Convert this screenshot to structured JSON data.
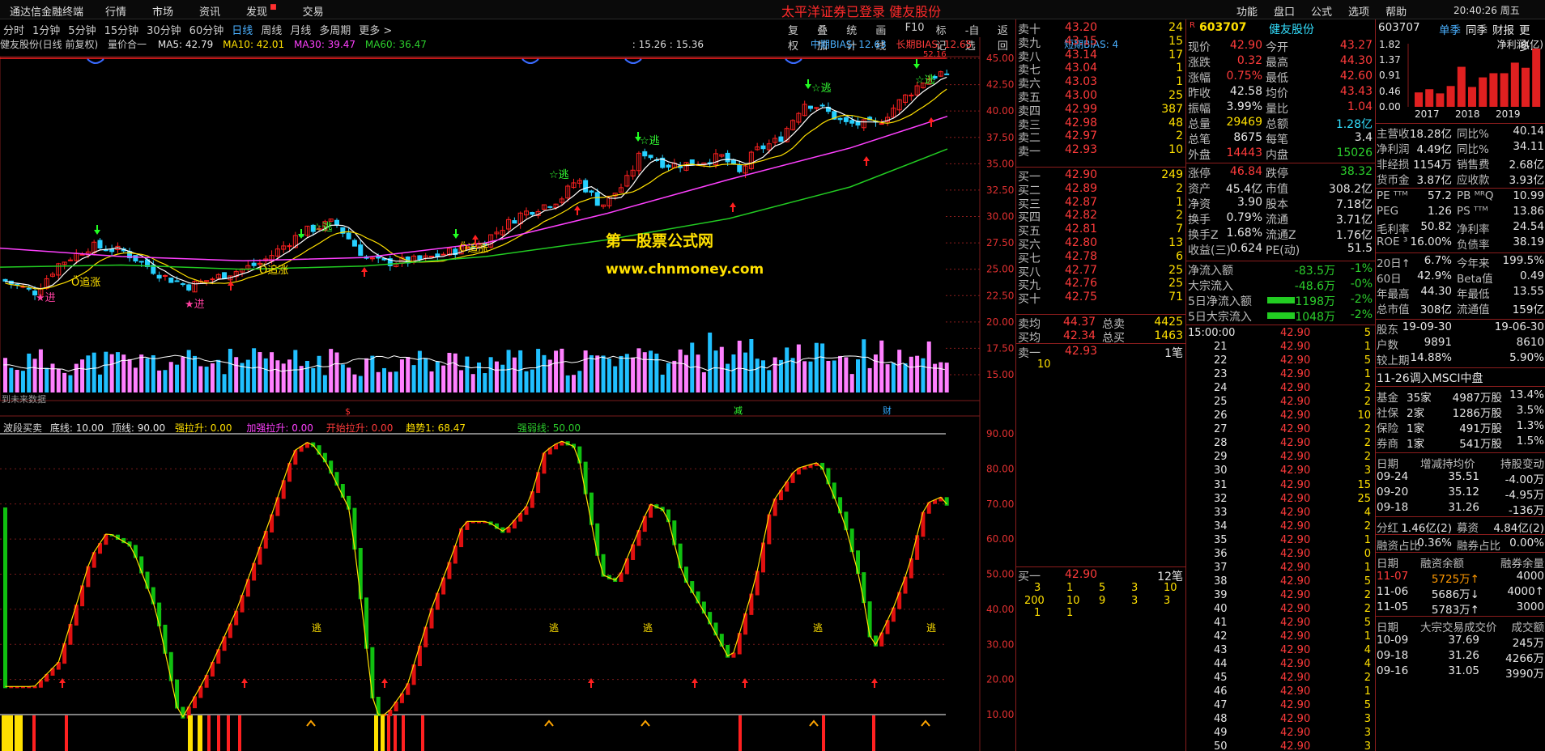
{
  "app": {
    "title": "通达信金融终端",
    "menus": [
      "行情",
      "市场",
      "资讯",
      "发现",
      "交易"
    ],
    "login_notice": "太平洋证券已登录   健友股份",
    "right_menus": [
      "功能",
      "盘口",
      "公式",
      "选项",
      "帮助"
    ],
    "clock": "20:40:26",
    "weekday": "周五"
  },
  "periods": {
    "items": [
      "分时",
      "1分钟",
      "5分钟",
      "15分钟",
      "30分钟",
      "60分钟",
      "日线",
      "周线",
      "月线",
      "多周期",
      "更多 >"
    ],
    "active": "日线"
  },
  "tools": [
    "复权",
    "叠加",
    "统计",
    "画线",
    "F10",
    "标记",
    "-自选",
    "返回"
  ],
  "chart": {
    "main_title": "健友股份(日线 前复权)",
    "indicator_main": "量价合一",
    "ma5": "MA5: 42.79",
    "ma10": "MA10: 42.01",
    "ma30": "MA30: 39.47",
    "ma60": "MA60: 36.47",
    "time_range": ": 15.26 : 15.36",
    "bias_mid": "中期BIAS: 12.63",
    "bias_long": "长期BIAS: 12.65",
    "bias_short": "短期BIAS: 4",
    "colors": {
      "ma5": "#ffffff",
      "ma10": "#ffe000",
      "ma30": "#ff40ff",
      "ma60": "#22cc22",
      "up": "#ff2020",
      "down": "#26d0ff",
      "vol_up": "#ff80ff",
      "vol_down": "#20c0ff"
    },
    "price_ticks": [
      "45.00",
      "42.50",
      "40.00",
      "37.50",
      "35.00",
      "32.50",
      "30.00",
      "27.50",
      "25.00",
      "22.50",
      "20.00",
      "17.50",
      "15.00"
    ],
    "ind_ticks": [
      "90.00",
      "80.00",
      "70.00",
      "60.00",
      "50.00",
      "40.00",
      "30.00",
      "20.00",
      "10.00"
    ],
    "watermark1": "第一股票公式网",
    "watermark2": "www.chnmoney.com",
    "future_label": "到未来数据",
    "signal_escape": "☆逃",
    "signal_enter": "★进",
    "signal_up": "Ö追涨",
    "escape_short": "逃",
    "markers": {
      "s": "$",
      "reduce": "减",
      "fin": "财"
    },
    "max_label": "52.16"
  },
  "indicator": {
    "name": "波段买卖",
    "bottom": "底线: 10.00",
    "top": "顶线: 90.00",
    "strong": "强拉升: 0.00",
    "add": "加强拉升: 0.00",
    "start": "开始拉升: 0.00",
    "trend": "趋势1: 68.47",
    "weak": "强弱线: 50.00"
  },
  "book": {
    "asks": [
      [
        "卖十",
        "43.20",
        "24"
      ],
      [
        "卖九",
        "43.15",
        "15"
      ],
      [
        "卖八",
        "43.14",
        "17"
      ],
      [
        "卖七",
        "43.04",
        "1"
      ],
      [
        "卖六",
        "43.03",
        "1"
      ],
      [
        "卖五",
        "43.00",
        "25"
      ],
      [
        "卖四",
        "42.99",
        "387"
      ],
      [
        "卖三",
        "42.98",
        "48"
      ],
      [
        "卖二",
        "42.97",
        "2"
      ],
      [
        "卖一",
        "42.93",
        "10"
      ]
    ],
    "bids": [
      [
        "买一",
        "42.90",
        "249"
      ],
      [
        "买二",
        "42.89",
        "2"
      ],
      [
        "买三",
        "42.87",
        "1"
      ],
      [
        "买四",
        "42.82",
        "2"
      ],
      [
        "买五",
        "42.81",
        "7"
      ],
      [
        "买六",
        "42.80",
        "13"
      ],
      [
        "买七",
        "42.78",
        "6"
      ],
      [
        "买八",
        "42.77",
        "25"
      ],
      [
        "买九",
        "42.76",
        "25"
      ],
      [
        "买十",
        "42.75",
        "71"
      ]
    ],
    "ask_avg": [
      "卖均",
      "44.37",
      "总卖",
      "4425"
    ],
    "bid_avg": [
      "买均",
      "42.34",
      "总买",
      "1463"
    ],
    "sell1": [
      "卖一",
      "42.93",
      "1笔"
    ],
    "sell1_qty": "10",
    "buy1": [
      "买一",
      "42.90",
      "12笔"
    ],
    "buy1_qtys": [
      [
        "3",
        "1",
        "5",
        "3",
        "10"
      ],
      [
        "200",
        "10",
        "9",
        "3",
        "3"
      ],
      [
        "1",
        "1"
      ]
    ]
  },
  "quote": {
    "code": "603707",
    "name": "健友股份",
    "flag": "R",
    "rows": [
      [
        "现价",
        "42.90",
        "今开",
        "43.27"
      ],
      [
        "涨跌",
        "0.32",
        "最高",
        "44.30"
      ],
      [
        "涨幅",
        "0.75%",
        "最低",
        "42.60"
      ],
      [
        "昨收",
        "42.58",
        "均价",
        "43.43"
      ],
      [
        "振幅",
        "3.99%",
        "量比",
        "1.04"
      ],
      [
        "总量",
        "29469",
        "总额",
        "1.28亿"
      ],
      [
        "总笔",
        "8675",
        "每笔",
        "3.4"
      ],
      [
        "外盘",
        "14443",
        "内盘",
        "15026"
      ]
    ],
    "rows2": [
      [
        "涨停",
        "46.84",
        "跌停",
        "38.32"
      ],
      [
        "资产",
        "45.4亿",
        "市值",
        "308.2亿"
      ],
      [
        "净资",
        "3.90",
        "股本",
        "7.18亿"
      ],
      [
        "换手",
        "0.79%",
        "流通",
        "3.71亿"
      ],
      [
        "换手Z",
        "1.68%",
        "流通Z",
        "1.76亿"
      ],
      [
        "收益(三)",
        "0.624",
        "PE(动)",
        "51.5"
      ]
    ],
    "flows": [
      [
        "净流入额",
        "-83.5万",
        "-1%"
      ],
      [
        "大宗流入",
        "-48.6万",
        "-0%"
      ],
      [
        "5日净流入额",
        "-1198万",
        "-2%"
      ],
      [
        "5日大宗流入",
        "-1048万",
        "-2%"
      ]
    ],
    "tick_header": "15:00:00",
    "ticks": [
      [
        "21",
        "42.90",
        "1"
      ],
      [
        "22",
        "42.90",
        "5"
      ],
      [
        "23",
        "42.90",
        "1"
      ],
      [
        "24",
        "42.90",
        "2"
      ],
      [
        "25",
        "42.90",
        "2"
      ],
      [
        "26",
        "42.90",
        "10"
      ],
      [
        "27",
        "42.90",
        "2"
      ],
      [
        "28",
        "42.90",
        "2"
      ],
      [
        "29",
        "42.90",
        "2"
      ],
      [
        "30",
        "42.90",
        "3"
      ],
      [
        "31",
        "42.90",
        "15"
      ],
      [
        "32",
        "42.90",
        "25"
      ],
      [
        "33",
        "42.90",
        "4"
      ],
      [
        "34",
        "42.90",
        "2"
      ],
      [
        "35",
        "42.90",
        "1"
      ],
      [
        "36",
        "42.90",
        "0"
      ],
      [
        "37",
        "42.90",
        "1"
      ],
      [
        "38",
        "42.90",
        "5"
      ],
      [
        "39",
        "42.90",
        "2"
      ],
      [
        "40",
        "42.90",
        "2"
      ],
      [
        "41",
        "42.90",
        "5"
      ],
      [
        "42",
        "42.90",
        "1"
      ],
      [
        "43",
        "42.90",
        "4"
      ],
      [
        "44",
        "42.90",
        "4"
      ],
      [
        "45",
        "42.90",
        "2"
      ],
      [
        "46",
        "42.90",
        "1"
      ],
      [
        "47",
        "42.90",
        "5"
      ],
      [
        "48",
        "42.90",
        "3"
      ],
      [
        "49",
        "42.90",
        "3"
      ],
      [
        "50",
        "42.90",
        "3"
      ]
    ],
    "first_tick": [
      "",
      "42.90",
      "5"
    ]
  },
  "f10": {
    "code": "603707",
    "tabs": [
      "单季",
      "同季",
      "财报",
      "更多..."
    ],
    "chart_label": "净利润(亿)",
    "y_ticks": [
      "1.82",
      "1.37",
      "0.91",
      "0.46",
      "0.00"
    ],
    "years": [
      "2017",
      "2018",
      "2019"
    ],
    "bars": [
      0.45,
      0.55,
      0.42,
      0.65,
      1.25,
      0.62,
      0.92,
      1.05,
      1.05,
      1.38,
      1.22,
      1.82
    ],
    "fin": [
      [
        "主营收",
        "18.28亿",
        "同比%",
        "40.14"
      ],
      [
        "净利润",
        "4.49亿",
        "同比%",
        "34.11"
      ],
      [
        "非经损",
        "1154万",
        "销售费",
        "2.68亿"
      ],
      [
        "货币金",
        "3.87亿",
        "应收款",
        "3.93亿"
      ]
    ],
    "val": [
      [
        "PE ᵀᵀᴹ",
        "57.2",
        "PB ᴹᴿQ",
        "10.99"
      ],
      [
        "PEG",
        "1.26",
        "PS ᵀᵀᴹ",
        "13.86"
      ],
      [
        "毛利率",
        "50.82",
        "净利率",
        "24.54"
      ],
      [
        "ROE ³",
        "16.00%",
        "负债率",
        "38.19"
      ]
    ],
    "perf": [
      [
        "20日↑",
        "6.7%",
        "今年来",
        "199.5%"
      ],
      [
        "60日",
        "42.9%",
        "Beta值",
        "0.49"
      ],
      [
        "年最高",
        "44.30",
        "年最低",
        "13.55"
      ],
      [
        "总市值",
        "308亿",
        "流通值",
        "159亿"
      ]
    ],
    "holders": [
      [
        "股东",
        "19-09-30",
        "19-06-30"
      ],
      [
        "户数",
        "9891",
        "8610"
      ],
      [
        "较上期",
        "14.88%",
        "5.90%"
      ]
    ],
    "msci": "11-26调入MSCI中盘",
    "inst": [
      [
        "基金",
        "35家",
        "4987万股",
        "13.4%"
      ],
      [
        "社保",
        "2家",
        "1286万股",
        "3.5%"
      ],
      [
        "保险",
        "1家",
        "491万股",
        "1.3%"
      ],
      [
        "券商",
        "1家",
        "541万股",
        "1.5%"
      ]
    ],
    "holdhead": [
      "日期",
      "增减持均价",
      "持股变动"
    ],
    "holdrows": [
      [
        "09-24",
        "35.51",
        "-4.00万"
      ],
      [
        "09-20",
        "35.12",
        "-4.95万"
      ],
      [
        "09-18",
        "31.26",
        "-136万"
      ]
    ],
    "div": [
      "分红",
      "1.46亿(2)",
      "募资",
      "4.84亿(2)"
    ],
    "margin_ratio": [
      "融资占比",
      "0.36%",
      "融券占比",
      "0.00%"
    ],
    "marginhead": [
      "日期",
      "融资余额",
      "融券余量"
    ],
    "marginrows": [
      [
        "11-07",
        "5725万↑",
        "4000"
      ],
      [
        "11-06",
        "5686万↓",
        "4000↑"
      ],
      [
        "11-05",
        "5783万↑",
        "3000"
      ]
    ],
    "blockhead": [
      "日期",
      "大宗交易成交价",
      "成交额"
    ],
    "blockrows": [
      [
        "10-09",
        "37.69",
        "245万"
      ],
      [
        "09-18",
        "31.26",
        "4266万"
      ],
      [
        "09-16",
        "31.05",
        "3990万"
      ]
    ]
  }
}
